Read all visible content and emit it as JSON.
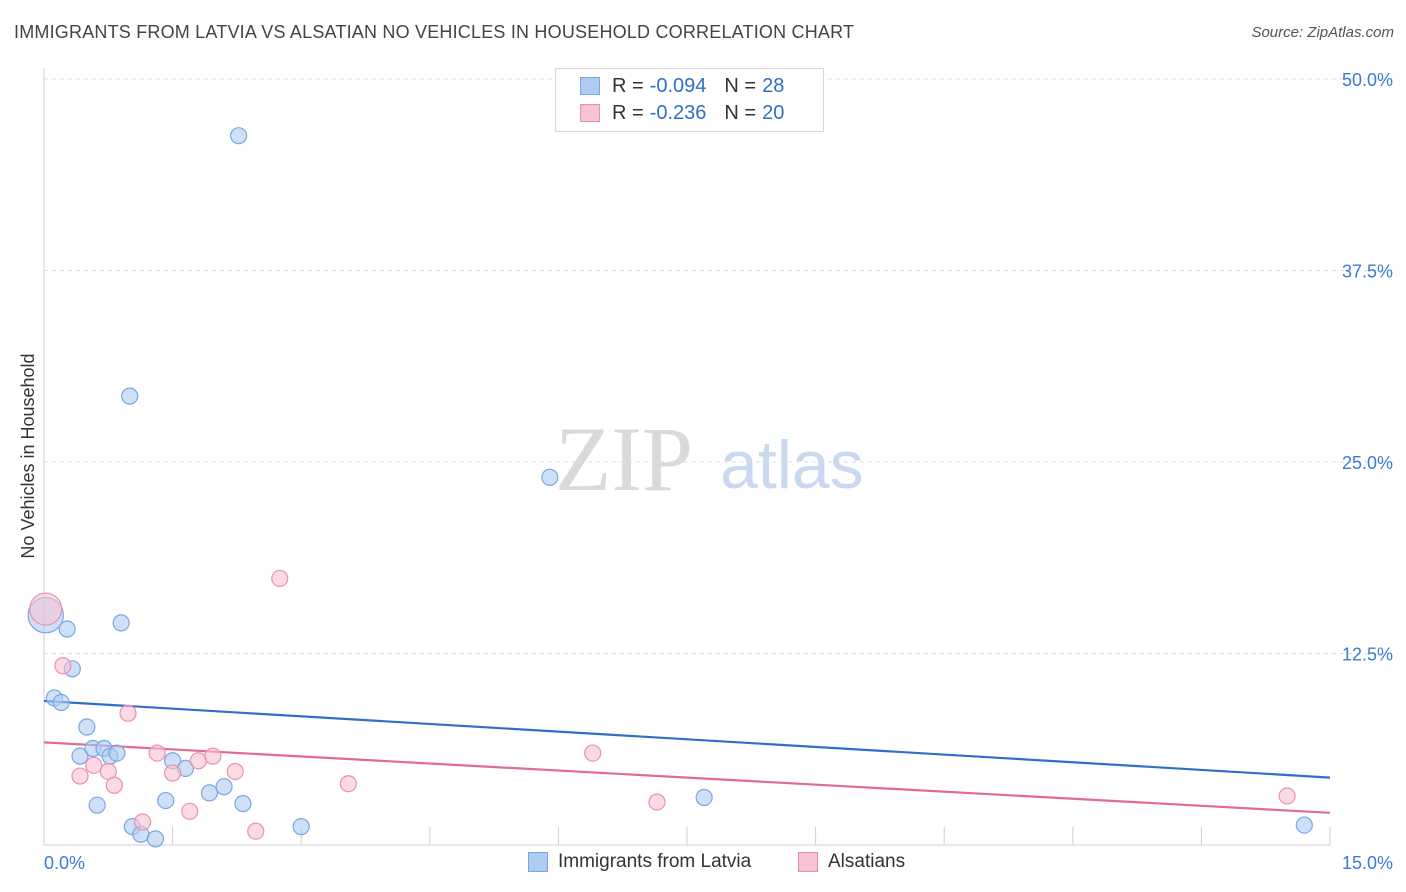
{
  "header": {
    "title": "IMMIGRANTS FROM LATVIA VS ALSATIAN NO VEHICLES IN HOUSEHOLD CORRELATION CHART",
    "source": "Source: ZipAtlas.com"
  },
  "watermark": {
    "zip": "ZIP",
    "atlas": "atlas"
  },
  "legend": {
    "series1": {
      "r_label": "R =",
      "r_value": "-0.094",
      "n_label": "N =",
      "n_value": "28"
    },
    "series2": {
      "r_label": "R =",
      "r_value": "-0.236",
      "n_label": "N =",
      "n_value": "20"
    }
  },
  "colors": {
    "blue_fill": "#aecbf2",
    "blue_stroke": "#7aa6e0",
    "blue_line": "#2f6fc7",
    "pink_fill": "#f7c3d4",
    "pink_stroke": "#eb8fb0",
    "pink_line": "#e06b96",
    "tick_label": "#3a7bd5"
  },
  "chart_data": {
    "type": "scatter",
    "title": "IMMIGRANTS FROM LATVIA VS ALSATIAN NO VEHICLES IN HOUSEHOLD CORRELATION CHART",
    "xlabel": "",
    "ylabel": "No Vehicles in Household",
    "xlim": [
      0,
      15
    ],
    "ylim": [
      0,
      50
    ],
    "x_tick_labels": [
      "0.0%",
      "15.0%"
    ],
    "y_ticks": [
      12.5,
      25,
      37.5,
      50
    ],
    "y_tick_labels": [
      "12.5%",
      "25.0%",
      "37.5%",
      "50.0%"
    ],
    "grid": true,
    "series": [
      {
        "name": "Immigrants from Latvia",
        "color": "blue",
        "points": [
          [
            0.02,
            15.0,
            2.2
          ],
          [
            0.12,
            9.6,
            1
          ],
          [
            0.2,
            9.3,
            1
          ],
          [
            0.27,
            14.1,
            1
          ],
          [
            0.33,
            11.5,
            1
          ],
          [
            0.42,
            5.8,
            1
          ],
          [
            0.5,
            7.7,
            1
          ],
          [
            0.57,
            6.3,
            1
          ],
          [
            0.62,
            2.6,
            1
          ],
          [
            0.7,
            6.3,
            1
          ],
          [
            0.77,
            5.8,
            1
          ],
          [
            0.85,
            6.0,
            1
          ],
          [
            0.9,
            14.5,
            1
          ],
          [
            1.0,
            29.3,
            1
          ],
          [
            1.03,
            1.2,
            1
          ],
          [
            1.13,
            0.7,
            1
          ],
          [
            1.3,
            0.4,
            1
          ],
          [
            1.42,
            2.9,
            1
          ],
          [
            1.5,
            5.5,
            1
          ],
          [
            1.65,
            5.0,
            1
          ],
          [
            1.93,
            3.4,
            1
          ],
          [
            2.1,
            3.8,
            1
          ],
          [
            2.27,
            46.3,
            1
          ],
          [
            2.32,
            2.7,
            1
          ],
          [
            3.0,
            1.2,
            1
          ],
          [
            5.9,
            24.0,
            1
          ],
          [
            7.7,
            3.1,
            1
          ],
          [
            14.7,
            1.3,
            1
          ]
        ],
        "trend": [
          [
            0,
            9.4
          ],
          [
            15,
            4.4
          ]
        ]
      },
      {
        "name": "Alsatians",
        "color": "pink",
        "points": [
          [
            0.02,
            15.4,
            2.0
          ],
          [
            0.22,
            11.7,
            1
          ],
          [
            0.42,
            4.5,
            1
          ],
          [
            0.58,
            5.2,
            1
          ],
          [
            0.75,
            4.8,
            1
          ],
          [
            0.82,
            3.9,
            1
          ],
          [
            0.98,
            8.6,
            1
          ],
          [
            1.15,
            1.5,
            1
          ],
          [
            1.32,
            6.0,
            1
          ],
          [
            1.5,
            4.7,
            1
          ],
          [
            1.7,
            2.2,
            1
          ],
          [
            1.8,
            5.5,
            1
          ],
          [
            1.97,
            5.8,
            1
          ],
          [
            2.23,
            4.8,
            1
          ],
          [
            2.47,
            0.9,
            1
          ],
          [
            2.75,
            17.4,
            1
          ],
          [
            3.55,
            4.0,
            1
          ],
          [
            6.4,
            6.0,
            1
          ],
          [
            7.15,
            2.8,
            1
          ],
          [
            14.5,
            3.2,
            1
          ]
        ],
        "trend": [
          [
            0,
            6.7
          ],
          [
            15,
            2.1
          ]
        ]
      }
    ]
  }
}
